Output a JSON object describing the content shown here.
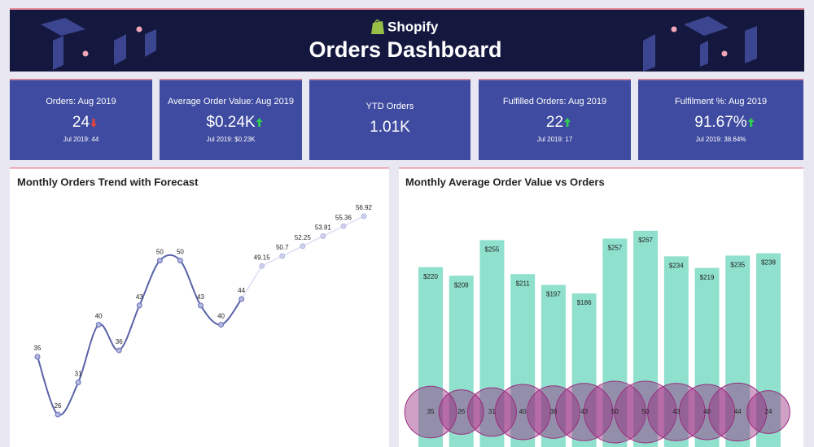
{
  "header": {
    "logo": "Shopify",
    "title": "Orders Dashboard"
  },
  "kpis": [
    {
      "title": "Orders: Aug 2019",
      "value": "24",
      "trend": "down",
      "comparison": "Jul 2019: 44"
    },
    {
      "title": "Average Order Value: Aug 2019",
      "value": "$0.24K",
      "trend": "up",
      "comparison": "Jul 2019: $0.23K"
    },
    {
      "title": "YTD Orders",
      "value": "1.01K"
    },
    {
      "title": "Fulfilled Orders: Aug 2019",
      "value": "22",
      "trend": "up",
      "comparison": "Jul 2019: 17"
    },
    {
      "title": "Fulfilment %: Aug 2019",
      "value": "91.67%",
      "trend": "up",
      "comparison": "Jul 2019: 38.64%"
    }
  ],
  "chart_data": [
    {
      "type": "line",
      "title": "Monthly Orders Trend with Forecast",
      "series": [
        {
          "color": "#5a63a8",
          "values": [
            35,
            26,
            31,
            40,
            36,
            43,
            50,
            50,
            43,
            40,
            44,
            null,
            null,
            null,
            null,
            null,
            null
          ]
        },
        {
          "color": "#dcdef2",
          "values": [
            null,
            null,
            null,
            null,
            null,
            null,
            null,
            null,
            null,
            null,
            null,
            49.15,
            50.7,
            52.25,
            53.81,
            55.36,
            56.92
          ]
        }
      ]
    },
    {
      "type": "combo",
      "title": "Monthly Average Order Value vs Orders",
      "bars": {
        "color": "#8fe0cd",
        "values": [
          220,
          209,
          255,
          211,
          197,
          186,
          257,
          267,
          234,
          219,
          235,
          238
        ],
        "value_labels": [
          "$220",
          "$209",
          "$255",
          "$211",
          "$197",
          "$186",
          "$257",
          "$267",
          "$234",
          "$219",
          "$235",
          "$238"
        ]
      },
      "bubbles": {
        "color": "#9a2c80",
        "values": [
          35,
          26,
          31,
          40,
          36,
          43,
          50,
          50,
          43,
          40,
          44,
          24
        ]
      }
    }
  ]
}
